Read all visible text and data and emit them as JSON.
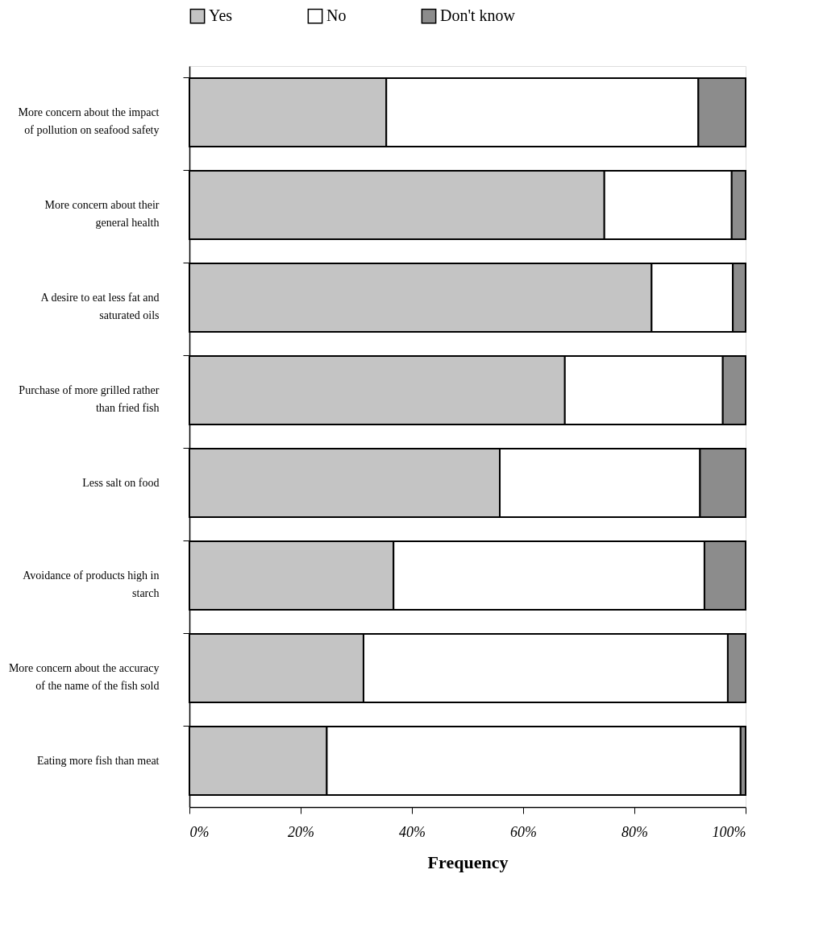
{
  "chart_data": {
    "type": "bar",
    "orientation": "horizontal",
    "stacked": true,
    "xlabel": "Frequency",
    "categories": [
      "More concern about the impact\nof pollution on seafood safety",
      "More concern about their\ngeneral health",
      "A desire to eat less fat and\nsaturated oils",
      "Purchase of more grilled rather\nthan fried fish",
      "Less salt on food",
      "Avoidance of products high in\nstarch",
      "More concern about the accuracy\nof the name of the fish sold",
      "Eating more fish than meat"
    ],
    "series": [
      {
        "name": "Yes",
        "color": "#c4c4c4",
        "values": [
          35.4,
          74.6,
          83.1,
          67.5,
          55.8,
          36.7,
          31.3,
          24.7
        ]
      },
      {
        "name": "No",
        "color": "#ffffff",
        "values": [
          56.1,
          22.9,
          14.6,
          28.4,
          36.0,
          55.9,
          65.5,
          74.4
        ]
      },
      {
        "name": "Don't know",
        "color": "#8c8c8c",
        "values": [
          8.5,
          2.5,
          2.3,
          4.1,
          8.2,
          7.4,
          3.2,
          0.9
        ]
      }
    ],
    "xlim": [
      0,
      100
    ],
    "xticks": [
      {
        "value": 0,
        "label": "0%"
      },
      {
        "value": 20,
        "label": "20%"
      },
      {
        "value": 40,
        "label": "40%"
      },
      {
        "value": 60,
        "label": "60%"
      },
      {
        "value": 80,
        "label": "80%"
      },
      {
        "value": 100,
        "label": "100%"
      }
    ],
    "grid": false,
    "legend": "top"
  }
}
